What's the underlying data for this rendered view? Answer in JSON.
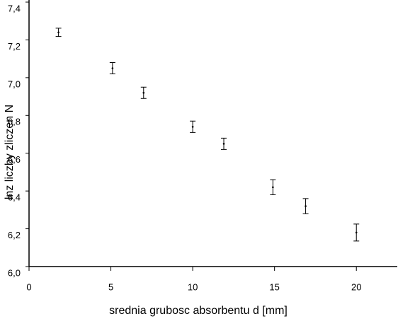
{
  "chart_data": {
    "type": "scatter",
    "x_label": "srednia grubosc absorbentu d [mm]",
    "y_label": "lnz liczby zliczen N",
    "x": [
      1.8,
      5.1,
      7.0,
      10.0,
      11.9,
      14.9,
      16.9,
      20.0
    ],
    "values": [
      7.24,
      7.05,
      6.92,
      6.74,
      6.65,
      6.42,
      6.32,
      6.18
    ],
    "errors": [
      0.022,
      0.03,
      0.03,
      0.03,
      0.03,
      0.04,
      0.04,
      0.045
    ],
    "color": "#000000",
    "xlim": [
      0,
      22.5
    ],
    "xticks": [
      0,
      5,
      10,
      15,
      20
    ],
    "ylim": [
      6.0,
      7.4
    ],
    "yticks": [
      {
        "value": 6.0,
        "label": "6,0"
      },
      {
        "value": 6.2,
        "label": "6,2"
      },
      {
        "value": 6.4,
        "label": "6,4"
      },
      {
        "value": 6.6,
        "label": "6,6"
      },
      {
        "value": 6.8,
        "label": "6,8"
      },
      {
        "value": 7.0,
        "label": "7,0"
      },
      {
        "value": 7.2,
        "label": "7,2"
      },
      {
        "value": 7.4,
        "label": "7,4"
      }
    ]
  }
}
